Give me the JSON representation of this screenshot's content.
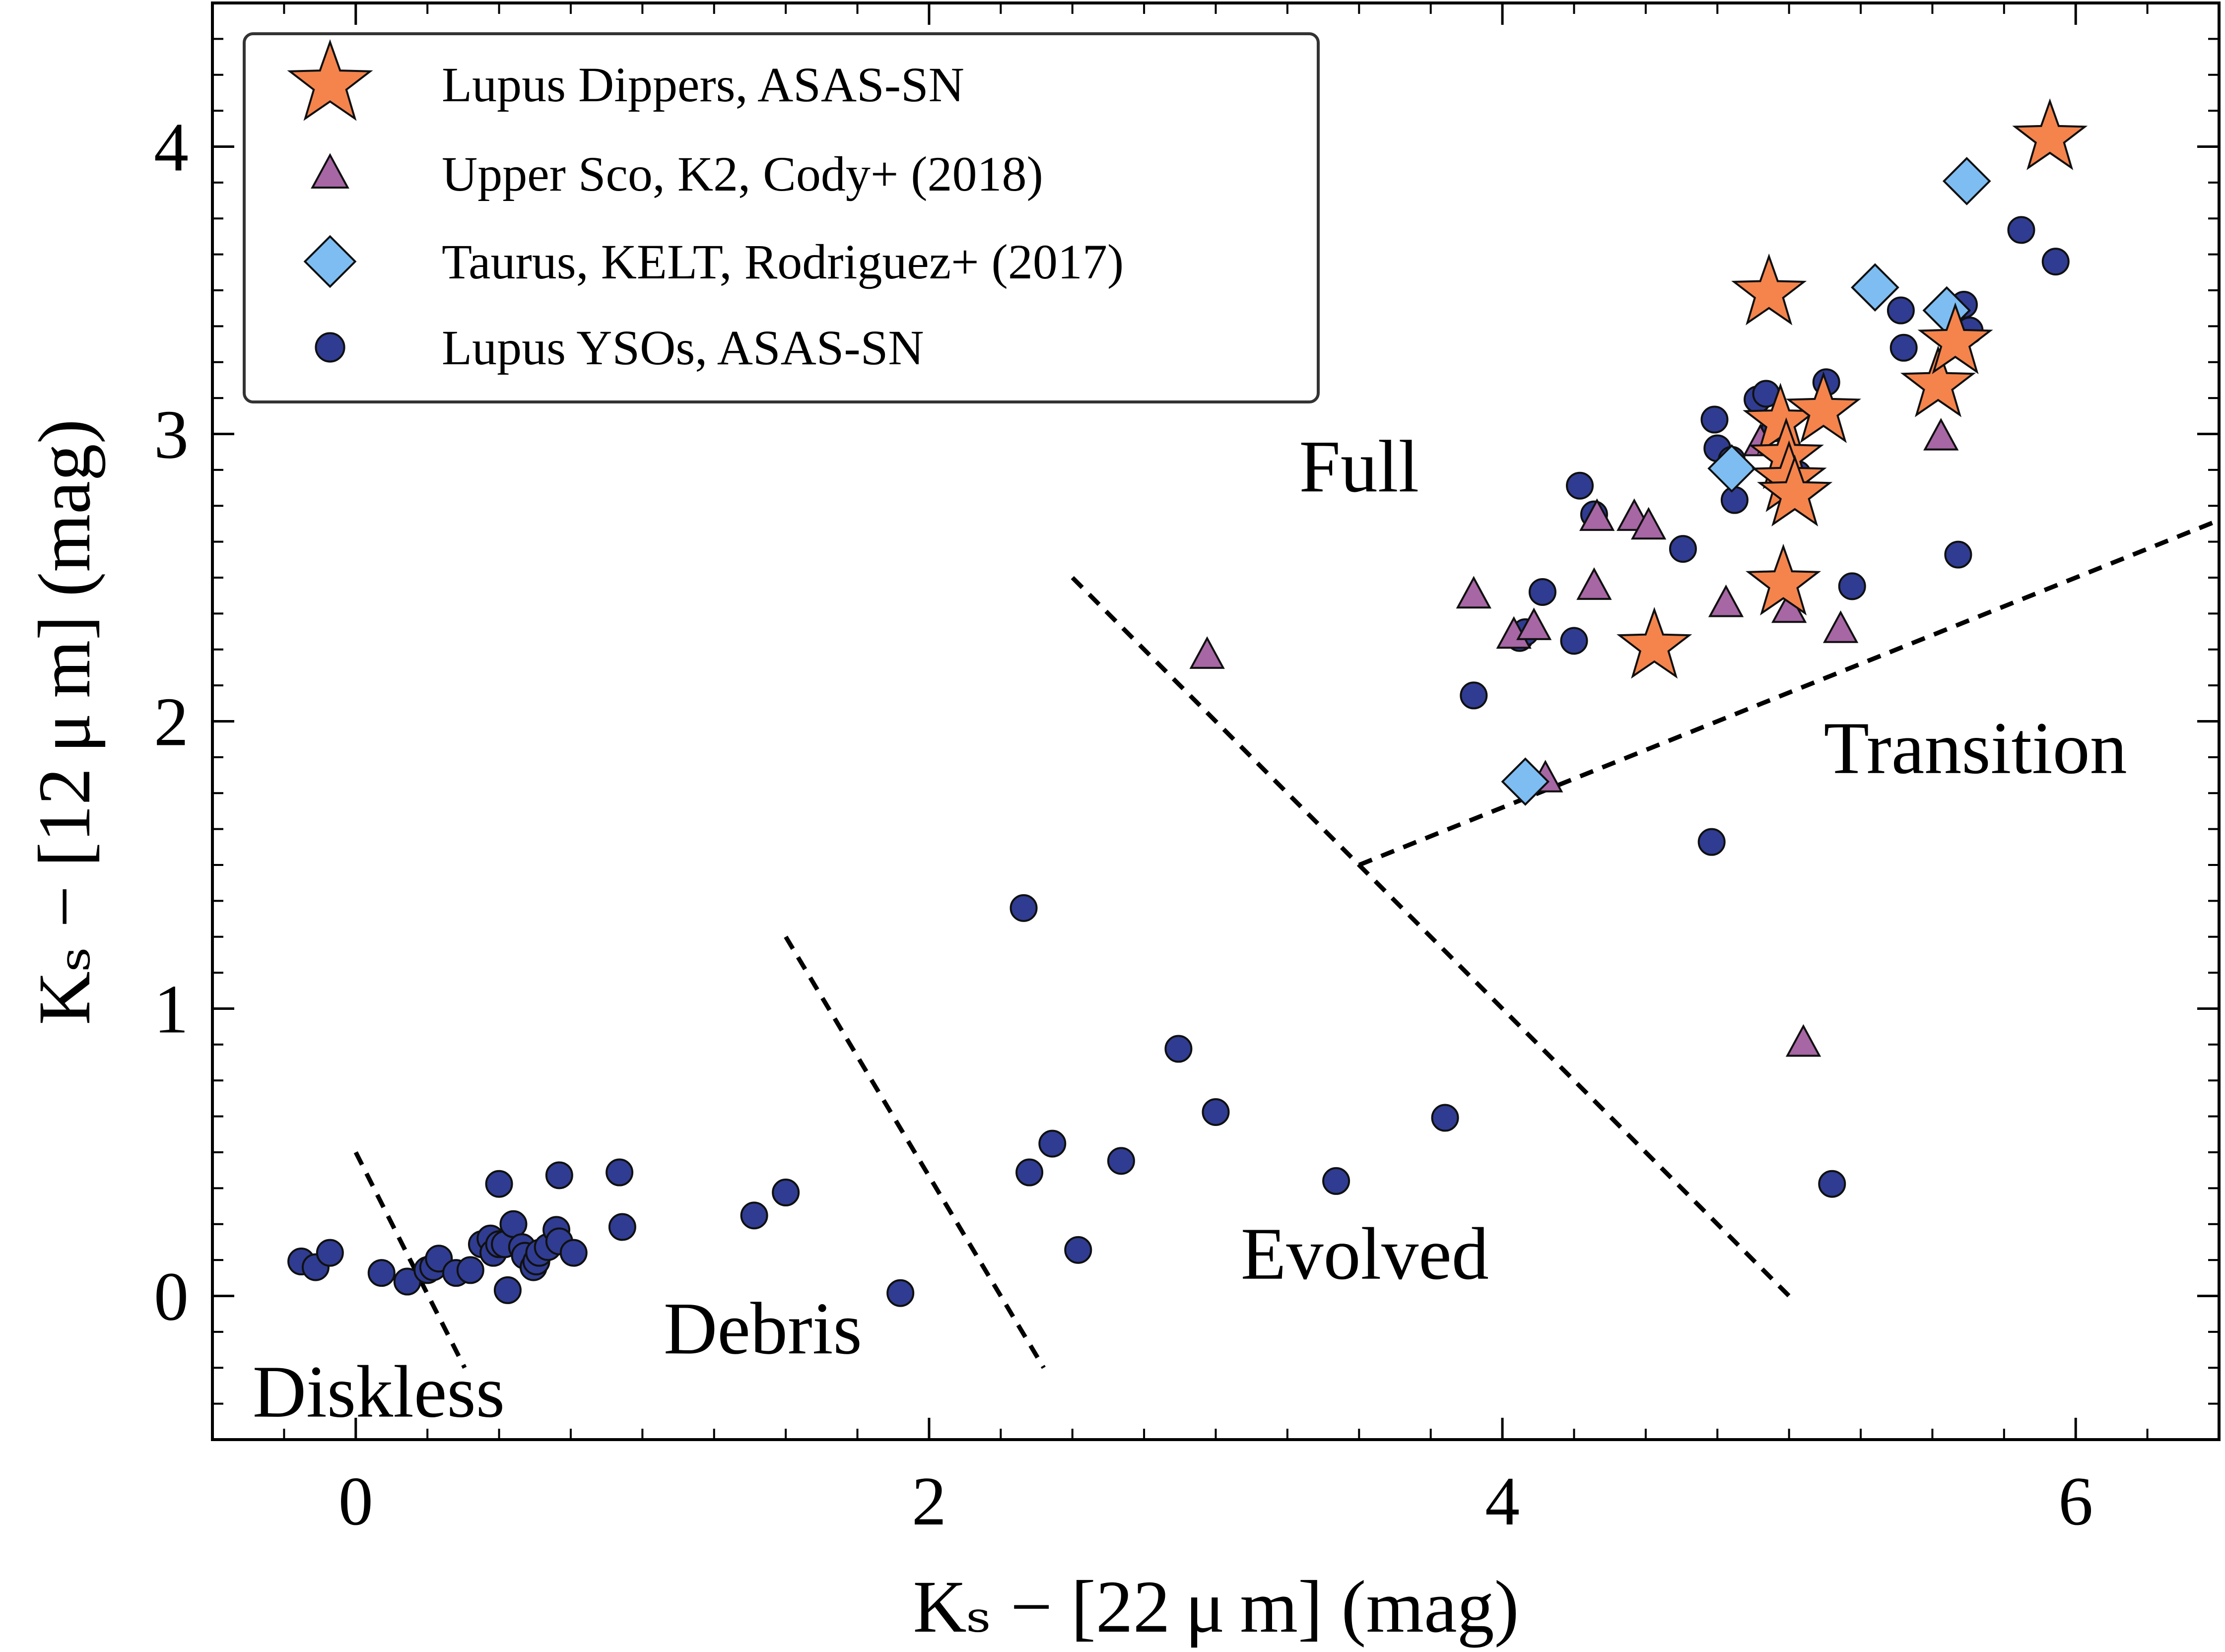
{
  "colors": {
    "dippers": "#F4844C",
    "upper_sco": "#A766A4",
    "taurus": "#7DBDF2",
    "lupus_ysos": "#2F3C91",
    "marker_edge": "#101010",
    "boundary": "#000000"
  },
  "chart_data": {
    "type": "scatter",
    "title": "",
    "xlabel": "Kₛ − [22 μ m] (mag)",
    "ylabel": "Kₛ − [12 μ m] (mag)",
    "xlim": [
      -0.5,
      6.5
    ],
    "ylim": [
      -0.5,
      4.5
    ],
    "x_ticks": [
      0,
      2,
      4,
      6
    ],
    "x_tick_labels": [
      "0",
      "2",
      "4",
      "6"
    ],
    "y_ticks": [
      0,
      1,
      2,
      3,
      4
    ],
    "y_tick_labels": [
      "0",
      "1",
      "2",
      "3",
      "4"
    ],
    "grid": false,
    "legend_position": "top-left",
    "series": [
      {
        "name": "Lupus Dippers, ASAS-SN",
        "marker": "star",
        "color_key": "dippers",
        "x": [
          4.93,
          4.97,
          4.99,
          5.0,
          5.02,
          4.98,
          5.12,
          5.52,
          5.58,
          4.53,
          5.91
        ],
        "y": [
          3.49,
          3.04,
          2.92,
          2.84,
          2.79,
          2.48,
          3.08,
          3.17,
          3.32,
          2.26,
          4.03
        ]
      },
      {
        "name": "Upper Sco, K2, Cody+ (2018)",
        "marker": "triangle",
        "color_key": "upper_sco",
        "x": [
          2.97,
          3.9,
          4.04,
          4.11,
          4.33,
          4.32,
          4.46,
          4.51,
          4.78,
          4.9,
          5.0,
          5.18,
          5.53,
          5.05,
          4.15
        ],
        "y": [
          2.23,
          2.44,
          2.3,
          2.33,
          2.71,
          2.47,
          2.71,
          2.68,
          2.41,
          2.97,
          2.39,
          2.32,
          2.99,
          0.88,
          1.8
        ]
      },
      {
        "name": "Taurus, KELT, Rodriguez+ (2017)",
        "marker": "diamond",
        "color_key": "taurus",
        "x": [
          4.08,
          4.8,
          5.3,
          5.55,
          5.62
        ],
        "y": [
          1.79,
          2.88,
          3.51,
          3.43,
          3.88
        ]
      },
      {
        "name": "Lupus YSOs, ASAS-SN",
        "marker": "circle",
        "color_key": "lupus_ysos",
        "x": [
          -0.19,
          -0.14,
          -0.09,
          0.09,
          0.18,
          0.25,
          0.27,
          0.29,
          0.35,
          0.4,
          0.44,
          0.47,
          0.48,
          0.5,
          0.5,
          0.53,
          0.52,
          0.55,
          0.58,
          0.59,
          0.62,
          0.63,
          0.64,
          0.67,
          0.7,
          0.71,
          0.71,
          0.76,
          0.92,
          0.93,
          1.39,
          1.5,
          1.9,
          2.33,
          2.35,
          2.43,
          2.52,
          2.67,
          2.87,
          3.0,
          3.42,
          3.8,
          3.9,
          4.06,
          4.08,
          4.14,
          4.27,
          4.25,
          4.32,
          4.63,
          4.73,
          4.74,
          4.75,
          4.8,
          4.81,
          4.89,
          4.92,
          4.95,
          5.03,
          5.13,
          5.15,
          5.22,
          5.39,
          5.4,
          5.59,
          5.63,
          5.61,
          5.81,
          5.93
        ],
        "y": [
          0.12,
          0.1,
          0.15,
          0.08,
          0.05,
          0.09,
          0.1,
          0.13,
          0.08,
          0.09,
          0.18,
          0.2,
          0.15,
          0.39,
          0.18,
          0.02,
          0.18,
          0.25,
          0.17,
          0.14,
          0.1,
          0.12,
          0.15,
          0.17,
          0.23,
          0.42,
          0.19,
          0.15,
          0.43,
          0.24,
          0.28,
          0.36,
          0.01,
          1.35,
          0.43,
          0.53,
          0.16,
          0.47,
          0.86,
          0.64,
          0.4,
          0.62,
          2.09,
          2.29,
          2.31,
          2.45,
          2.82,
          2.28,
          2.72,
          2.6,
          1.58,
          3.05,
          2.95,
          2.91,
          2.77,
          3.12,
          3.14,
          3.02,
          2.86,
          3.18,
          0.39,
          2.47,
          3.43,
          3.3,
          2.58,
          3.36,
          3.45,
          3.71,
          3.6
        ]
      }
    ],
    "boundaries": [
      {
        "name": "diskless-debris-boundary",
        "points": [
          [
            0.0,
            0.5
          ],
          [
            0.38,
            -0.25
          ]
        ]
      },
      {
        "name": "debris-evolved-boundary",
        "points": [
          [
            1.5,
            1.25
          ],
          [
            2.4,
            -0.25
          ]
        ]
      },
      {
        "name": "evolved-full-boundary",
        "points": [
          [
            2.5,
            2.5
          ],
          [
            5.0,
            0.0
          ]
        ]
      },
      {
        "name": "full-transition-boundary",
        "points": [
          [
            3.5,
            1.5
          ],
          [
            6.5,
            2.7
          ]
        ]
      }
    ],
    "region_labels": [
      {
        "name": "region-label-full",
        "text": "Full",
        "x": 3.5,
        "y": 2.8
      },
      {
        "name": "region-label-transition",
        "text": "Transition",
        "x": 5.65,
        "y": 1.82
      },
      {
        "name": "region-label-evolved",
        "text": "Evolved",
        "x": 3.52,
        "y": 0.06
      },
      {
        "name": "region-label-debris",
        "text": "Debris",
        "x": 1.42,
        "y": -0.2
      },
      {
        "name": "region-label-diskless",
        "text": "Diskless",
        "x": 0.08,
        "y": -0.42
      }
    ]
  }
}
